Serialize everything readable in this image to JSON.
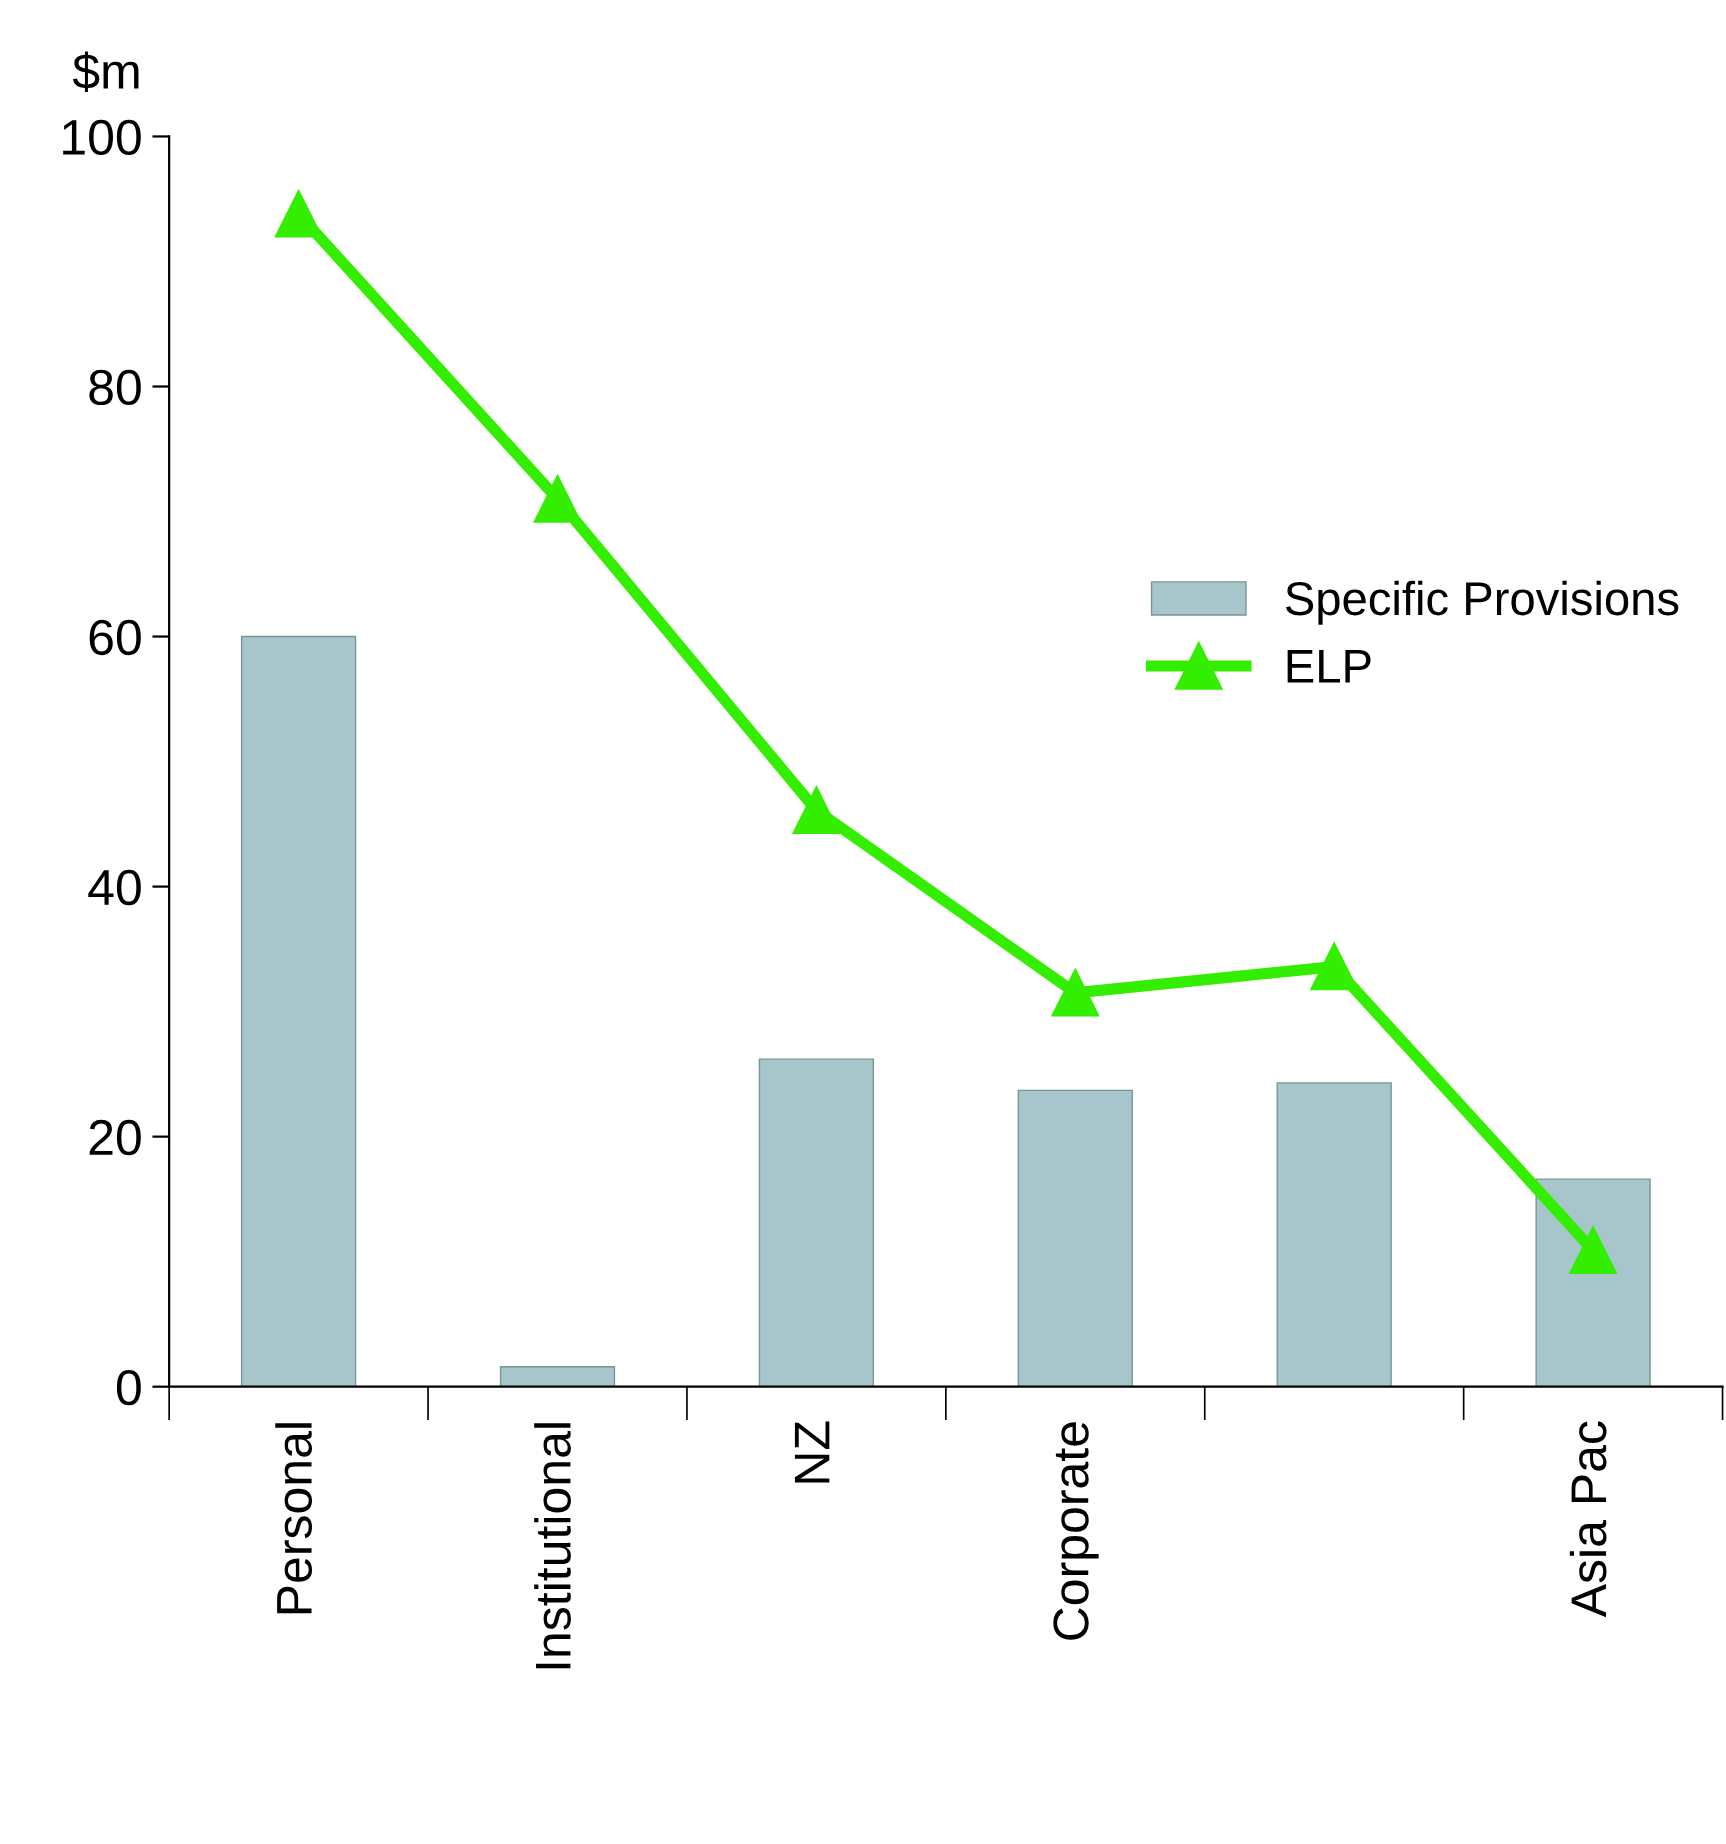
{
  "chart_data": {
    "type": "bar",
    "ylabel": "$m",
    "categories": [
      "Personal",
      "Institutional",
      "NZ",
      "Corporate",
      null,
      "Asia Pac"
    ],
    "series": [
      {
        "name": "Specific Provisions",
        "color": "#a6c6cb",
        "values": [
          60,
          1.6,
          26.2,
          23.7,
          24.3,
          16.6
        ]
      },
      {
        "name": "ELP",
        "type": "line",
        "color": "#33ee00",
        "marker": "triangle",
        "values": [
          93.8,
          71.0,
          46.1,
          31.5,
          33.6,
          10.9
        ]
      }
    ],
    "ylim": [
      0,
      100
    ],
    "yticks": [
      0,
      20,
      40,
      60,
      80,
      100
    ],
    "grid": false,
    "legend": "right"
  }
}
